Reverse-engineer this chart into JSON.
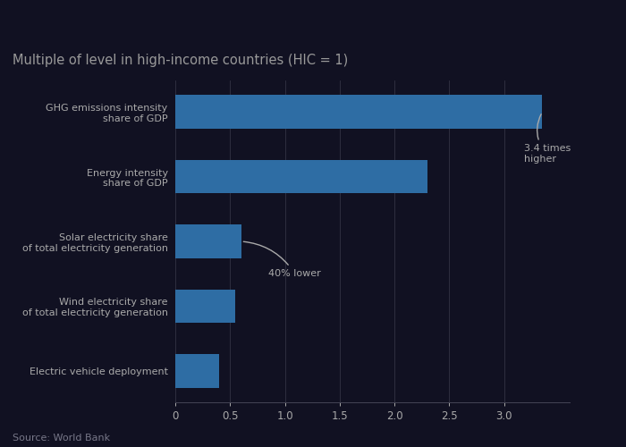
{
  "title": "Multiple of level in high-income countries (HIC = 1)",
  "source": "Source: World Bank",
  "categories": [
    "Electric vehicle deployment",
    "Wind electricity share\nof total electricity generation",
    "Solar electricity share\nof total electricity generation",
    "Energy intensity\nshare of GDP",
    "GHG emissions intensity\nshare of GDP"
  ],
  "values": [
    0.4,
    0.55,
    0.6,
    2.3,
    3.35
  ],
  "bar_color": "#2e6da4",
  "fig_background": "#111122",
  "ax_background": "#111122",
  "text_color": "#aaaaaa",
  "title_color": "#999999",
  "annotation_higher": "3.4 times\nhigher",
  "annotation_lower": "40% lower",
  "xlim": [
    0,
    3.6
  ],
  "xticks": [
    0,
    0.5,
    1.0,
    1.5,
    2.0,
    2.5,
    3.0
  ],
  "xtick_labels": [
    "0",
    "0.5",
    "1.0",
    "1.5",
    "2.0",
    "2.5",
    "3.0"
  ],
  "grid_color": "#333344",
  "spine_color": "#444455"
}
